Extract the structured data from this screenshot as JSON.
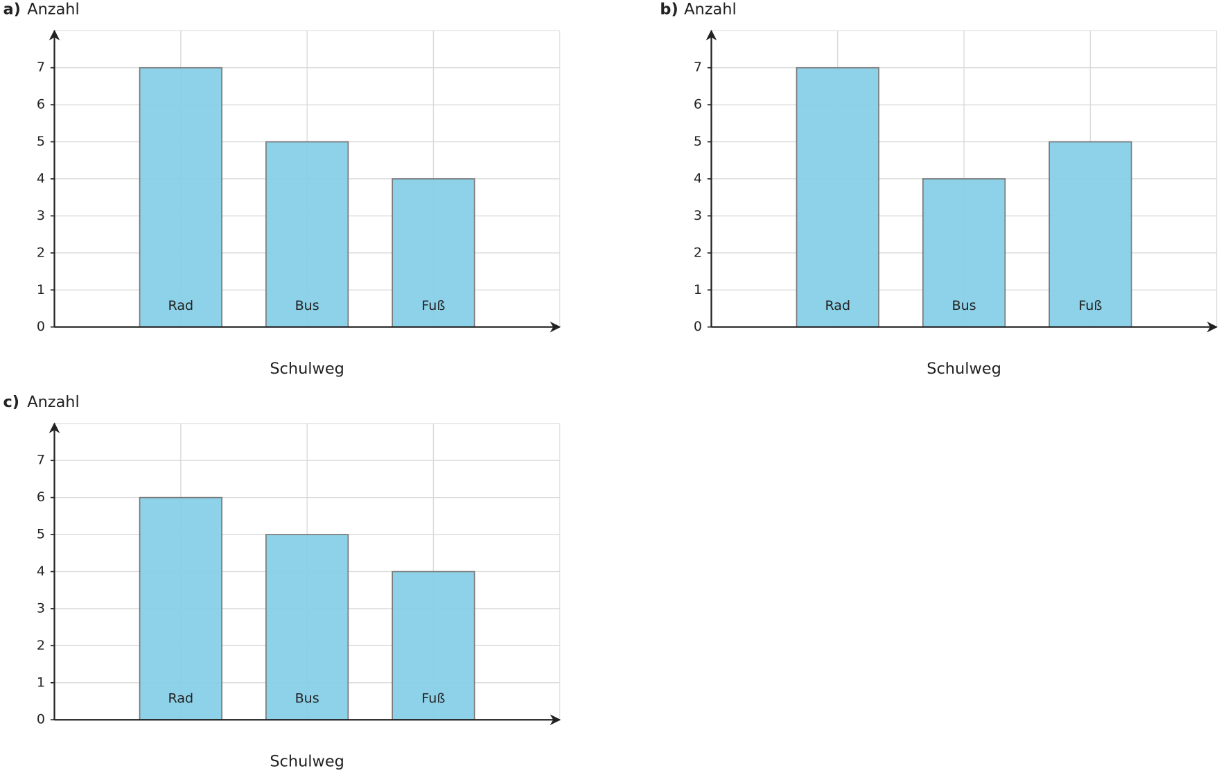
{
  "chart_data": [
    {
      "type": "bar",
      "label": "a)",
      "ylabel": "Anzahl",
      "xlabel": "Schulweg",
      "categories": [
        "Rad",
        "Bus",
        "Fuß"
      ],
      "values": [
        7,
        5,
        4
      ],
      "color": "#87d0e8",
      "ylim": [
        0,
        8
      ],
      "yticks": [
        0,
        1,
        2,
        3,
        4,
        5,
        6,
        7
      ],
      "grid": true
    },
    {
      "type": "bar",
      "label": "b)",
      "ylabel": "Anzahl",
      "xlabel": "Schulweg",
      "categories": [
        "Rad",
        "Bus",
        "Fuß"
      ],
      "values": [
        7,
        4,
        5
      ],
      "color": "#87d0e8",
      "ylim": [
        0,
        8
      ],
      "yticks": [
        0,
        1,
        2,
        3,
        4,
        5,
        6,
        7
      ],
      "grid": true
    },
    {
      "type": "bar",
      "label": "c)",
      "ylabel": "Anzahl",
      "xlabel": "Schulweg",
      "categories": [
        "Rad",
        "Bus",
        "Fuß"
      ],
      "values": [
        6,
        5,
        4
      ],
      "color": "#87d0e8",
      "ylim": [
        0,
        8
      ],
      "yticks": [
        0,
        1,
        2,
        3,
        4,
        5,
        6,
        7
      ],
      "grid": true
    }
  ]
}
